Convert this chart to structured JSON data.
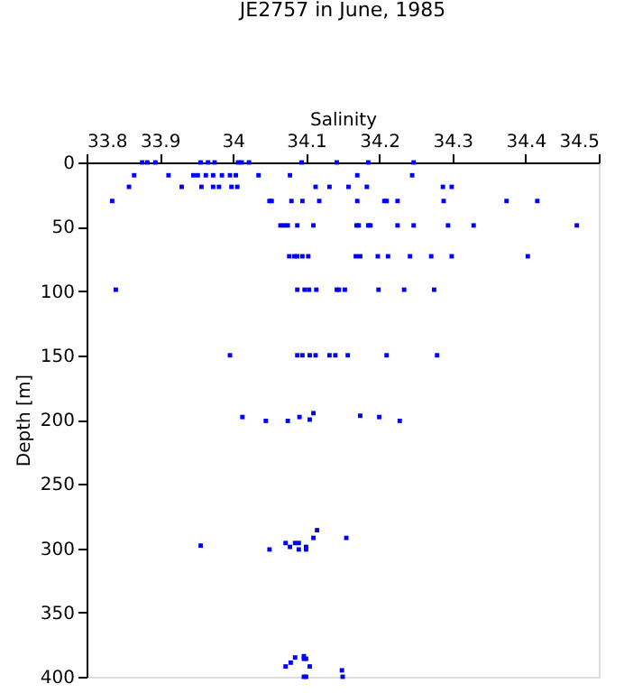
{
  "chart_data": {
    "type": "scatter",
    "title": "JE2757 in June, 1985",
    "xlabel": "Salinity",
    "ylabel": "Depth [m]",
    "xlim": [
      33.8,
      34.5
    ],
    "xticks": [
      33.8,
      33.9,
      {
        "value": 34,
        "label": "34"
      },
      34.1,
      34.2,
      34.3,
      34.4,
      34.5
    ],
    "ylim": [
      400,
      0
    ],
    "yticks": [
      0,
      50,
      100,
      150,
      200,
      250,
      300,
      350,
      400
    ],
    "grid": false,
    "legend": false,
    "marker": "square",
    "series": [
      {
        "color": "#0000ff",
        "x": [
          33.876,
          33.883,
          33.894,
          33.956,
          33.966,
          33.975,
          34.007,
          34.012,
          34.022,
          34.094,
          34.142,
          34.185,
          34.247,
          33.865,
          33.912,
          33.946,
          33.952,
          33.963,
          33.973,
          33.985,
          33.996,
          34.004,
          34.035,
          34.078,
          34.17,
          34.245,
          33.858,
          33.93,
          33.957,
          33.973,
          33.981,
          33.998,
          34.006,
          34.113,
          34.132,
          34.158,
          34.183,
          34.287,
          34.299,
          33.835,
          34.05,
          34.053,
          34.08,
          34.095,
          34.118,
          34.17,
          34.207,
          34.21,
          34.225,
          34.288,
          34.374,
          34.416,
          34.065,
          34.07,
          34.075,
          34.088,
          34.11,
          34.169,
          34.172,
          34.185,
          34.188,
          34.225,
          34.247,
          34.294,
          34.329,
          34.47,
          34.077,
          34.084,
          34.088,
          34.095,
          34.103,
          34.168,
          34.174,
          34.198,
          34.212,
          34.242,
          34.271,
          34.299,
          34.403,
          33.84,
          34.088,
          34.098,
          34.104,
          34.114,
          34.142,
          34.145,
          34.153,
          34.199,
          34.234,
          34.275,
          33.996,
          34.088,
          34.095,
          34.105,
          34.113,
          34.132,
          34.14,
          34.157,
          34.21,
          34.279,
          34.013,
          34.045,
          34.075,
          34.091,
          34.105,
          34.11,
          34.174,
          34.2,
          34.228,
          33.956,
          34.05,
          34.072,
          34.078,
          34.085,
          34.09,
          34.09,
          34.1,
          34.1,
          34.11,
          34.115,
          34.155,
          34.072,
          34.079,
          34.085,
          34.097,
          34.097,
          34.1,
          34.105,
          34.097,
          34.1,
          34.149,
          34.15
        ],
        "values": [
          0,
          0,
          0,
          0,
          0,
          0,
          0,
          0,
          0,
          0,
          0,
          0,
          0,
          10,
          10,
          10,
          10,
          10,
          10,
          10,
          10,
          10,
          10,
          10,
          10,
          10,
          19,
          19,
          19,
          19,
          19,
          19,
          19,
          19,
          19,
          19,
          19,
          19,
          19,
          30,
          30,
          30,
          30,
          30,
          30,
          30,
          30,
          30,
          30,
          30,
          30,
          30,
          49,
          49,
          49,
          49,
          49,
          49,
          49,
          49,
          49,
          49,
          49,
          49,
          49,
          49,
          73,
          73,
          73,
          73,
          73,
          73,
          73,
          73,
          73,
          73,
          73,
          73,
          73,
          99,
          99,
          99,
          99,
          99,
          99,
          99,
          99,
          99,
          99,
          99,
          150,
          150,
          150,
          150,
          150,
          150,
          150,
          150,
          150,
          150,
          198,
          201,
          201,
          198,
          200,
          195,
          197,
          198,
          201,
          298,
          301,
          296,
          299,
          296,
          296,
          301,
          299,
          301,
          292,
          286,
          292,
          392,
          389,
          385,
          384,
          386,
          386,
          392,
          400,
          400,
          395,
          400
        ]
      }
    ]
  }
}
